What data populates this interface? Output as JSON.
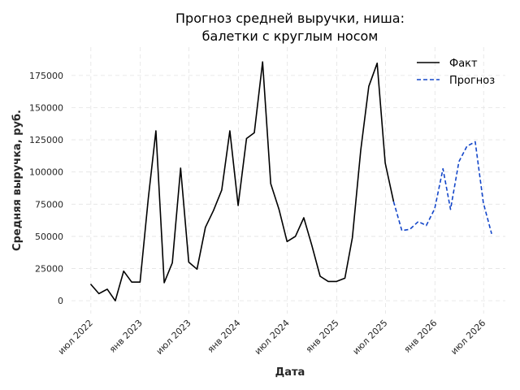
{
  "chart_data": {
    "type": "line",
    "title": [
      "Прогноз средней выручки, ниша:",
      "балетки с круглым носом"
    ],
    "xlabel": "Дата",
    "ylabel": "Средняя выручка, руб.",
    "ylim": [
      -10000,
      197000
    ],
    "yticks": [
      0,
      25000,
      50000,
      75000,
      100000,
      125000,
      150000,
      175000
    ],
    "ytick_labels": [
      "0",
      "25000",
      "50000",
      "75000",
      "100000",
      "125000",
      "150000",
      "175000"
    ],
    "xlim": [
      "2022-04-20",
      "2026-09-20"
    ],
    "xticks": [
      "2022-07-01",
      "2023-01-01",
      "2023-07-01",
      "2024-01-01",
      "2024-07-01",
      "2025-01-01",
      "2025-07-01",
      "2026-01-01",
      "2026-07-01"
    ],
    "xtick_labels": [
      "июл 2022",
      "янв 2023",
      "июл 2023",
      "янв 2024",
      "июл 2024",
      "янв 2025",
      "июл 2025",
      "янв 2026",
      "июл 2026"
    ],
    "grid": true,
    "legend_position": "top-right",
    "series": [
      {
        "name": "Факт",
        "color": "#000000",
        "style": "solid",
        "x": [
          "2022-06-30",
          "2022-07-31",
          "2022-08-31",
          "2022-09-30",
          "2022-10-31",
          "2022-11-30",
          "2022-12-31",
          "2023-01-31",
          "2023-02-28",
          "2023-03-31",
          "2023-04-30",
          "2023-05-31",
          "2023-06-30",
          "2023-07-31",
          "2023-08-31",
          "2023-09-30",
          "2023-10-31",
          "2023-11-30",
          "2023-12-31",
          "2024-01-31",
          "2024-02-29",
          "2024-03-31",
          "2024-04-30",
          "2024-05-31",
          "2024-06-30",
          "2024-07-31",
          "2024-08-31",
          "2024-09-30",
          "2024-10-31",
          "2024-11-30",
          "2024-12-31",
          "2025-01-31",
          "2025-02-28",
          "2025-03-31",
          "2025-04-30",
          "2025-05-31",
          "2025-06-30",
          "2025-07-31"
        ],
        "y": [
          13000,
          5500,
          9000,
          0,
          23000,
          14500,
          14500,
          80000,
          132000,
          14000,
          29500,
          103000,
          30000,
          24500,
          57000,
          70000,
          86000,
          132000,
          74000,
          126000,
          130500,
          185500,
          91000,
          71000,
          46000,
          50000,
          64500,
          43000,
          19000,
          15000,
          15000,
          17500,
          49000,
          117000,
          166500,
          184500,
          107000,
          77000
        ]
      },
      {
        "name": "Прогноз",
        "color": "#1346c9",
        "style": "dashed",
        "x": [
          "2025-07-31",
          "2025-08-31",
          "2025-09-30",
          "2025-10-31",
          "2025-11-30",
          "2025-12-31",
          "2026-01-31",
          "2026-02-28",
          "2026-03-31",
          "2026-04-30",
          "2026-05-31",
          "2026-06-30",
          "2026-07-31"
        ],
        "y": [
          77000,
          54500,
          55500,
          61500,
          58500,
          71500,
          102500,
          71000,
          108000,
          120000,
          123500,
          76000,
          52000
        ]
      }
    ]
  }
}
